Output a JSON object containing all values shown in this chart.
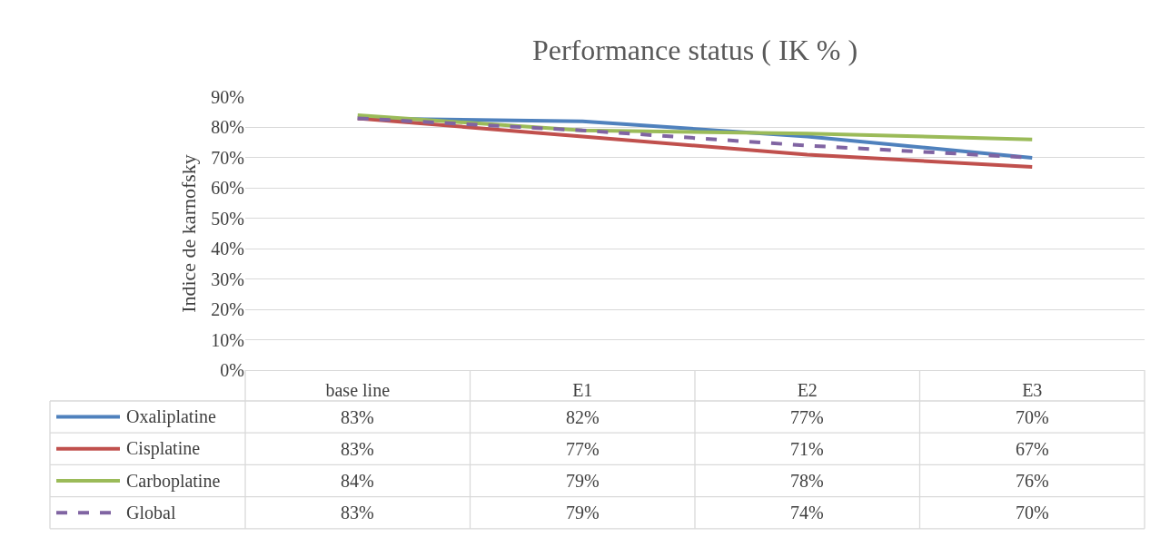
{
  "chart_data": {
    "type": "line",
    "title": "Performance status ( IK % )",
    "ylabel": "Indice de karnofsky",
    "categories": [
      "base line",
      "E1",
      "E2",
      "E3"
    ],
    "series": [
      {
        "name": "Oxaliplatine",
        "color": "#4f81bd",
        "values": [
          83,
          82,
          77,
          70
        ],
        "value_labels": [
          "83%",
          "82%",
          "77%",
          "70%"
        ]
      },
      {
        "name": "Cisplatine",
        "color": "#c0504d",
        "values": [
          83,
          77,
          71,
          67
        ],
        "value_labels": [
          "83%",
          "77%",
          "71%",
          "67%"
        ]
      },
      {
        "name": "Carboplatine",
        "color": "#9bbb59",
        "values": [
          84,
          79,
          78,
          76
        ],
        "value_labels": [
          "84%",
          "79%",
          "78%",
          "76%"
        ]
      },
      {
        "name": "Global",
        "color": "#8064a2",
        "values": [
          83,
          79,
          74,
          70
        ],
        "value_labels": [
          "83%",
          "79%",
          "74%",
          "70%"
        ],
        "line_style": "dashed"
      }
    ],
    "ylim": [
      0,
      90
    ],
    "yticks": [
      {
        "value": 0,
        "label": "0%"
      },
      {
        "value": 10,
        "label": "10%"
      },
      {
        "value": 20,
        "label": "20%"
      },
      {
        "value": 30,
        "label": "30%"
      },
      {
        "value": 40,
        "label": "40%"
      },
      {
        "value": 50,
        "label": "50%"
      },
      {
        "value": 60,
        "label": "60%"
      },
      {
        "value": 70,
        "label": "70%"
      },
      {
        "value": 80,
        "label": "80%"
      },
      {
        "value": 90,
        "label": "90%"
      }
    ],
    "grid": "y",
    "legend": "bottom",
    "marker": "none",
    "line_style": "solid"
  }
}
